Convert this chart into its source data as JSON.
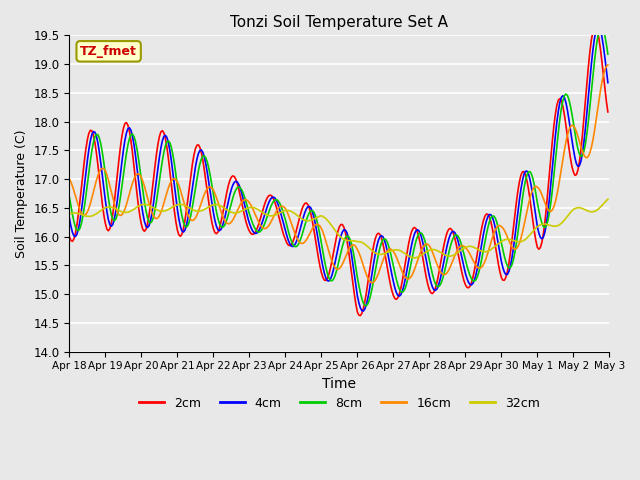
{
  "title": "Tonzi Soil Temperature Set A",
  "xlabel": "Time",
  "ylabel": "Soil Temperature (C)",
  "annotation": "TZ_fmet",
  "ylim": [
    14.0,
    19.5
  ],
  "line_colors": {
    "2cm": "#ff0000",
    "4cm": "#0000ff",
    "8cm": "#00cc00",
    "16cm": "#ff8800",
    "32cm": "#cccc00"
  },
  "bg_color": "#e8e8e8",
  "plot_bg_color": "#e8e8e8",
  "grid_color": "#ffffff",
  "tick_labels": [
    "Apr 18",
    "Apr 19",
    "Apr 20",
    "Apr 21",
    "Apr 22",
    "Apr 23",
    "Apr 24",
    "Apr 25",
    "Apr 26",
    "Apr 27",
    "Apr 28",
    "Apr 29",
    "Apr 30",
    "May 1",
    "May 2",
    "May 3"
  ],
  "yticks": [
    14.0,
    14.5,
    15.0,
    15.5,
    16.0,
    16.5,
    17.0,
    17.5,
    18.0,
    18.5,
    19.0,
    19.5
  ]
}
